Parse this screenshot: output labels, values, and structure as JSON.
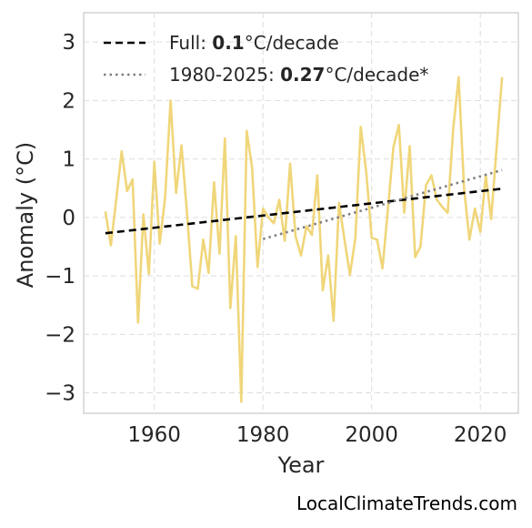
{
  "chart_data": {
    "type": "line",
    "xlabel": "Year",
    "ylabel": "Anomaly (°C)",
    "xlim": [
      1947,
      2027
    ],
    "ylim": [
      -3.35,
      3.5
    ],
    "xticks": [
      1960,
      1980,
      2000,
      2020
    ],
    "yticks": [
      3,
      2,
      1,
      0,
      -1,
      -2,
      -3
    ],
    "ytick_labels": [
      "3",
      "2",
      "1",
      "0",
      "−1",
      "−2",
      "−3"
    ],
    "grid": true,
    "legend_position": "top-left",
    "series": [
      {
        "name": "",
        "color": "#f0d67a",
        "style": "solid",
        "x": [
          1951,
          1952,
          1953,
          1954,
          1955,
          1956,
          1957,
          1958,
          1959,
          1960,
          1961,
          1962,
          1963,
          1964,
          1965,
          1966,
          1967,
          1968,
          1969,
          1970,
          1971,
          1972,
          1973,
          1974,
          1975,
          1976,
          1977,
          1978,
          1979,
          1980,
          1981,
          1982,
          1983,
          1984,
          1985,
          1986,
          1987,
          1988,
          1989,
          1990,
          1991,
          1992,
          1993,
          1994,
          1995,
          1996,
          1997,
          1998,
          1999,
          2000,
          2001,
          2002,
          2003,
          2004,
          2005,
          2006,
          2007,
          2008,
          2009,
          2010,
          2011,
          2012,
          2013,
          2014,
          2015,
          2016,
          2017,
          2018,
          2019,
          2020,
          2021,
          2022,
          2023,
          2024
        ],
        "values": [
          0.1,
          -0.48,
          0.3,
          1.13,
          0.45,
          0.65,
          -1.8,
          0.05,
          -0.97,
          0.95,
          -0.45,
          0.35,
          2.0,
          0.42,
          1.23,
          0.1,
          -1.18,
          -1.22,
          -0.38,
          -0.95,
          0.6,
          -0.62,
          1.35,
          -1.55,
          -0.32,
          -3.15,
          1.48,
          0.85,
          -0.85,
          0.15,
          0.0,
          -0.1,
          0.3,
          -0.4,
          0.92,
          -0.32,
          -0.65,
          -0.15,
          -0.3,
          0.72,
          -1.25,
          -0.65,
          -1.77,
          0.25,
          -0.38,
          -0.98,
          -0.35,
          1.55,
          0.78,
          -0.35,
          -0.38,
          -0.87,
          0.15,
          1.2,
          1.58,
          0.08,
          1.22,
          -0.68,
          -0.5,
          0.55,
          0.72,
          0.3,
          0.18,
          0.08,
          1.5,
          2.4,
          0.5,
          -0.38,
          0.15,
          -0.25,
          0.72,
          -0.03,
          1.2,
          2.4
        ]
      },
      {
        "name": "Full",
        "color": "#000000",
        "style": "dashed",
        "x": [
          1951,
          2024
        ],
        "values": [
          -0.27,
          0.49
        ]
      },
      {
        "name": "1980-2025",
        "color": "#808080",
        "style": "dotted",
        "x": [
          1980,
          2024
        ],
        "values": [
          -0.37,
          0.81
        ]
      }
    ],
    "legend": [
      {
        "prefix": "Full: ",
        "bold": "0.1",
        "suffix": "°C/decade",
        "color": "#000000",
        "style": "dashed"
      },
      {
        "prefix": "1980-2025: ",
        "bold": "0.27",
        "suffix": "°C/decade*",
        "color": "#808080",
        "style": "dotted"
      }
    ]
  },
  "credit": "LocalClimateTrends.com"
}
